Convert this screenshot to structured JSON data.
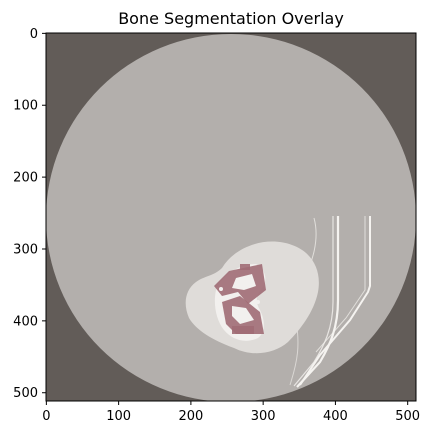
{
  "figure": {
    "title": "Bone Segmentation Overlay"
  },
  "image": {
    "size": 512,
    "outer_color": "#625c58",
    "fov_color": "#b3afac",
    "tissue_color": "#dfdcd9",
    "bone_color": "#f2f0ee",
    "mask_color": "#a06b74",
    "tube_color": "#f5f3f0"
  },
  "axes": {
    "x_ticks": [
      "0",
      "100",
      "200",
      "300",
      "400",
      "500"
    ],
    "y_ticks": [
      "0",
      "100",
      "200",
      "300",
      "400",
      "500"
    ]
  }
}
